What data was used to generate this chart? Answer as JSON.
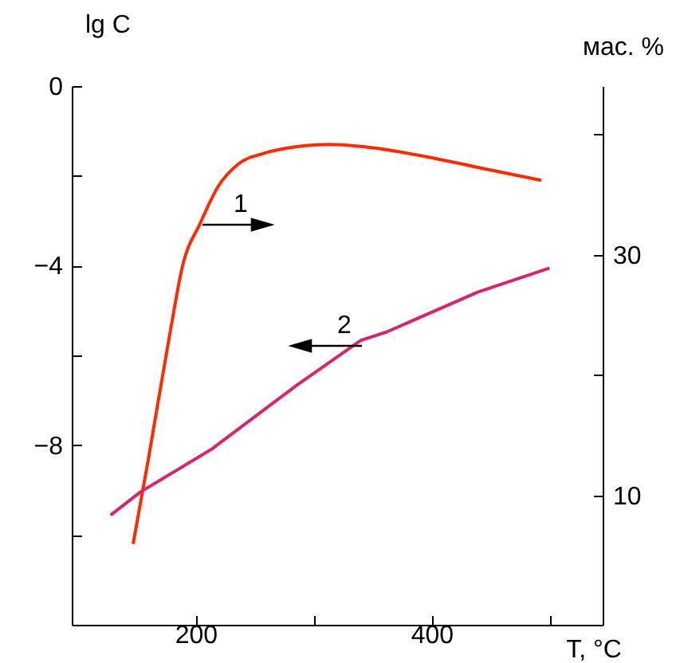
{
  "chart_data": {
    "type": "line",
    "xlabel": "T, °C",
    "ylabel": "lg C",
    "y2label": "мас. %",
    "xlim": [
      95,
      545
    ],
    "xticks": [
      200,
      {
        "value": 300,
        "label": null
      },
      400,
      {
        "value": 500,
        "label": null
      }
    ],
    "ylim": [
      -12,
      0
    ],
    "yticks": [
      0,
      {
        "value": -2,
        "label": null
      },
      -4,
      {
        "value": -6,
        "label": null
      },
      -8,
      {
        "value": -10,
        "label": null
      }
    ],
    "y2lim": [
      -0.7,
      44
    ],
    "y2ticks": [
      10,
      {
        "value": 20,
        "label": null
      },
      30,
      {
        "value": 40,
        "label": null
      }
    ],
    "series": [
      {
        "color": "#ff2a00",
        "x": [
          147,
          160,
          178,
          189,
          204,
          219,
          236,
          259,
          286,
          313,
          349,
          395,
          439,
          493
        ],
        "values": [
          -10.2,
          -8.3,
          -5.54,
          -4.0,
          -3.05,
          -2.24,
          -1.74,
          -1.49,
          -1.35,
          -1.3,
          -1.37,
          -1.57,
          -1.81,
          -2.1
        ]
      },
      {
        "color": "#d6246e",
        "axis": "y2",
        "x": [
          128,
          153,
          214,
          286,
          340,
          362,
          439,
          500
        ],
        "values": [
          8.4,
          10.3,
          13.9,
          19.2,
          22.9,
          23.6,
          26.9,
          28.9
        ]
      }
    ],
    "annotations": [
      "1",
      "2"
    ],
    "grid": false
  }
}
